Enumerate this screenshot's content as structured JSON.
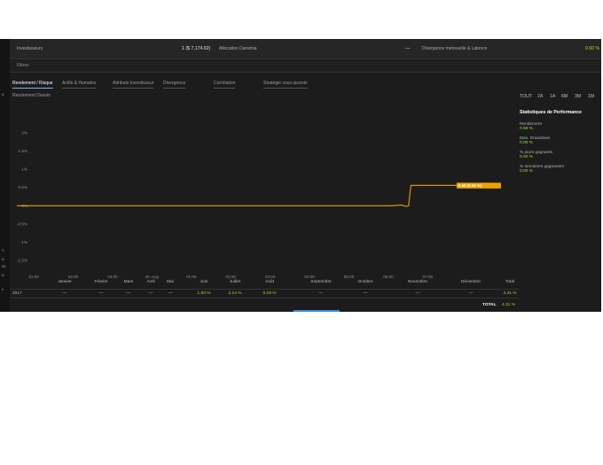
{
  "header": {
    "investors_label": "Investisseurs",
    "investors_value": "1 ($ 7,174.92)",
    "allocation_label": "Allocation Darwinia",
    "allocation_value": "—",
    "divergence_label": "Divergence mensuelle & Latence",
    "divergence_value": "0.60 %"
  },
  "filters": {
    "label": "Filtres"
  },
  "tabs": [
    {
      "label": "Rendement / Risque",
      "active": true
    },
    {
      "label": "Actifs & Humains",
      "active": false
    },
    {
      "label": "Attributs Investisseur",
      "active": false
    },
    {
      "label": "Divergence",
      "active": false
    },
    {
      "label": "Corrélation",
      "active": false
    },
    {
      "label": "Stratégie sous-jacente",
      "active": false
    }
  ],
  "chart_subtitle": "Rendement Darwin",
  "time_ranges": [
    "TOUT",
    "2A",
    "1A",
    "6M",
    "3M",
    "1M"
  ],
  "stats": {
    "title": "Statistiques de Performance",
    "items": [
      {
        "label": "Rendement",
        "value": "0.56 %"
      },
      {
        "label": "Max. Drawdown",
        "value": "0.00 %"
      },
      {
        "label": "% jours gagnants",
        "value": "0.00 %"
      },
      {
        "label": "% semaines gagnantes",
        "value": "0.00 %"
      }
    ]
  },
  "chart_data": {
    "type": "line",
    "y_ticks": [
      "2%",
      "1.5%",
      "1%",
      "0.5%",
      "0%",
      "-0.5%",
      "-1%",
      "-1.5%"
    ],
    "x_ticks": [
      "21:00",
      "22:00",
      "23:00",
      "30. Aug",
      "01:00",
      "02:00",
      "03:00",
      "04:00",
      "05:00",
      "06:00",
      "07:00"
    ],
    "ylim": [
      -1.7,
      2.2
    ],
    "series": [
      {
        "color": "#f0a000",
        "points": [
          [
            0,
            0
          ],
          [
            0.78,
            0
          ],
          [
            0.8,
            0.02
          ],
          [
            0.805,
            0
          ],
          [
            0.81,
            -0.02
          ],
          [
            0.815,
            0
          ],
          [
            0.82,
            0.56
          ],
          [
            1.0,
            0.56
          ]
        ]
      }
    ],
    "tooltip": "0.56 (0.56 %)",
    "grid": false
  },
  "monthly_table": {
    "headers": [
      "Janvier",
      "Février",
      "Mars",
      "Avril",
      "Mai",
      "Juin",
      "Juillet",
      "Août",
      "Septembre",
      "Octobre",
      "Novembre",
      "Décembre",
      "Total"
    ],
    "rows": [
      {
        "year": "2017",
        "values": [
          "—",
          "—",
          "—",
          "—",
          "—",
          "1.93 %",
          "2.14 %",
          "0.19 %",
          "—",
          "—",
          "—",
          "—",
          "4.31 %"
        ]
      }
    ],
    "total_label": "TOTAL",
    "total_value": "4.31 %"
  },
  "colors": {
    "accent_green": "#9be22e",
    "line_orange": "#f0a000",
    "active_tab_blue": "#6cb7f5"
  }
}
